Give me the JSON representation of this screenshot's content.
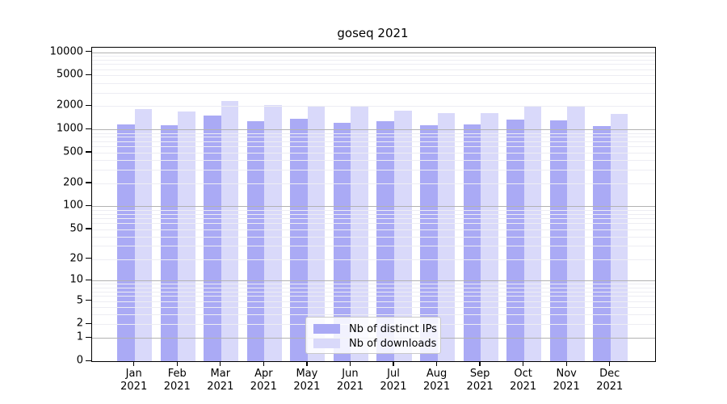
{
  "title": "goseq 2021",
  "chart_data": {
    "type": "bar",
    "title": "goseq 2021",
    "categories": [
      "Jan 2021",
      "Feb 2021",
      "Mar 2021",
      "Apr 2021",
      "May 2021",
      "Jun 2021",
      "Jul 2021",
      "Aug 2021",
      "Sep 2021",
      "Oct 2021",
      "Nov 2021",
      "Dec 2021"
    ],
    "series": [
      {
        "name": "Nb of distinct IPs",
        "color": "#aaaaf5",
        "values": [
          1150,
          1120,
          1500,
          1280,
          1380,
          1230,
          1270,
          1130,
          1160,
          1350,
          1320,
          1100
        ]
      },
      {
        "name": "Nb of downloads",
        "color": "#d9d9fa",
        "values": [
          1850,
          1720,
          2350,
          2080,
          2020,
          1970,
          1750,
          1620,
          1640,
          1970,
          2000,
          1580
        ]
      }
    ],
    "y_scale": "log1p",
    "y_ticks": [
      0,
      1,
      2,
      5,
      10,
      20,
      50,
      100,
      200,
      500,
      1000,
      2000,
      5000,
      10000
    ],
    "ylim": [
      0,
      10000
    ],
    "xlabel": "",
    "ylabel": "",
    "grid": "major+minor, drawn above bars",
    "legend_position": "bottom-center"
  },
  "legend": {
    "items": [
      {
        "label": "Nb of distinct IPs",
        "color": "#aaaaf5"
      },
      {
        "label": "Nb of downloads",
        "color": "#d9d9fa"
      }
    ]
  }
}
